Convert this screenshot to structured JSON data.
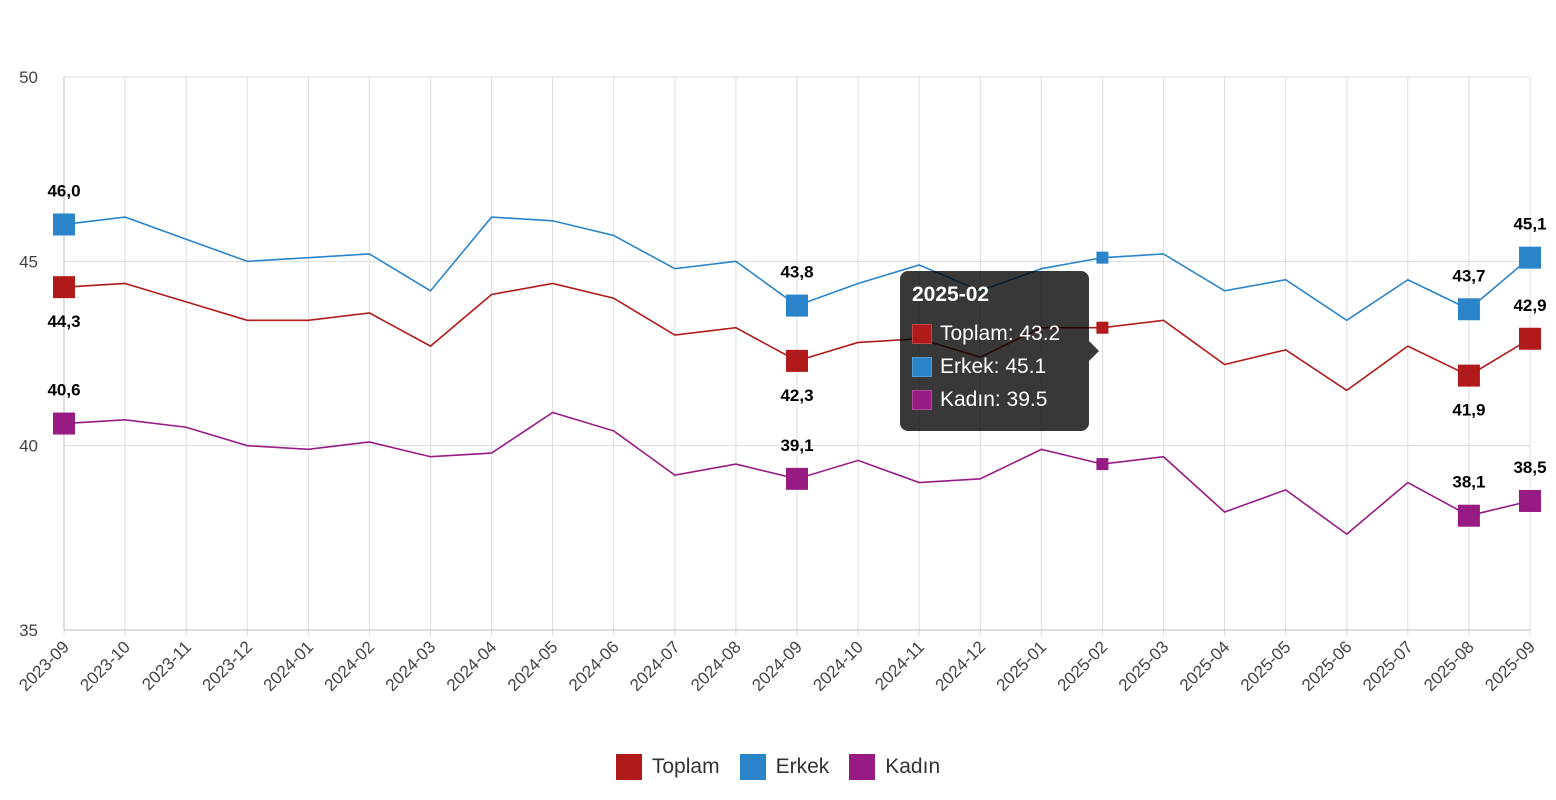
{
  "chart_data": {
    "type": "line",
    "x": [
      "2023-09",
      "2023-10",
      "2023-11",
      "2023-12",
      "2024-01",
      "2024-02",
      "2024-03",
      "2024-04",
      "2024-05",
      "2024-06",
      "2024-07",
      "2024-08",
      "2024-09",
      "2024-10",
      "2024-11",
      "2024-12",
      "2025-01",
      "2025-02",
      "2025-03",
      "2025-04",
      "2025-05",
      "2025-06",
      "2025-07",
      "2025-08",
      "2025-09"
    ],
    "ylim": [
      35,
      50
    ],
    "yticks": [
      "35",
      "40",
      "45",
      "50"
    ],
    "grid": true,
    "legend_position": "bottom-center",
    "series": [
      {
        "name": "Toplam",
        "color": "#b01a1a",
        "values": [
          44.3,
          44.4,
          43.9,
          43.4,
          43.4,
          43.6,
          42.7,
          44.1,
          44.4,
          44.0,
          43.0,
          43.2,
          42.3,
          42.8,
          42.9,
          42.4,
          43.2,
          43.2,
          43.4,
          42.2,
          42.6,
          41.5,
          42.7,
          41.9,
          42.9
        ],
        "labels": [
          {
            "i": 0,
            "text": "44,3",
            "pos": "below"
          },
          {
            "i": 12,
            "text": "42,3",
            "pos": "below"
          },
          {
            "i": 23,
            "text": "41,9",
            "pos": "below"
          },
          {
            "i": 24,
            "text": "42,9",
            "pos": "above"
          }
        ]
      },
      {
        "name": "Erkek",
        "color": "#2a84c9",
        "values": [
          46.0,
          46.2,
          45.6,
          45.0,
          45.1,
          45.2,
          44.2,
          46.2,
          46.1,
          45.7,
          44.8,
          45.0,
          43.8,
          44.4,
          44.9,
          44.2,
          44.8,
          45.1,
          45.2,
          44.2,
          44.5,
          43.4,
          44.5,
          43.7,
          45.1
        ],
        "labels": [
          {
            "i": 0,
            "text": "46,0",
            "pos": "above"
          },
          {
            "i": 12,
            "text": "43,8",
            "pos": "above"
          },
          {
            "i": 23,
            "text": "43,7",
            "pos": "above"
          },
          {
            "i": 24,
            "text": "45,1",
            "pos": "above"
          }
        ]
      },
      {
        "name": "Kadın",
        "color": "#981b84",
        "values": [
          40.6,
          40.7,
          40.5,
          40.0,
          39.9,
          40.1,
          39.7,
          39.8,
          40.9,
          40.4,
          39.2,
          39.5,
          39.1,
          39.6,
          39.0,
          39.1,
          39.9,
          39.5,
          39.7,
          38.2,
          38.8,
          37.6,
          39.0,
          38.1,
          38.5
        ],
        "labels": [
          {
            "i": 0,
            "text": "40,6",
            "pos": "above"
          },
          {
            "i": 12,
            "text": "39,1",
            "pos": "above"
          },
          {
            "i": 23,
            "text": "38,1",
            "pos": "above"
          },
          {
            "i": 24,
            "text": "38,5",
            "pos": "above"
          }
        ]
      }
    ],
    "highlight_index": 17
  },
  "tooltip": {
    "title": "2025-02",
    "rows": [
      "Toplam: 43.2",
      "Erkek: 45.1",
      "Kadın: 39.5"
    ]
  },
  "legend": [
    "Toplam",
    "Erkek",
    "Kadın"
  ]
}
